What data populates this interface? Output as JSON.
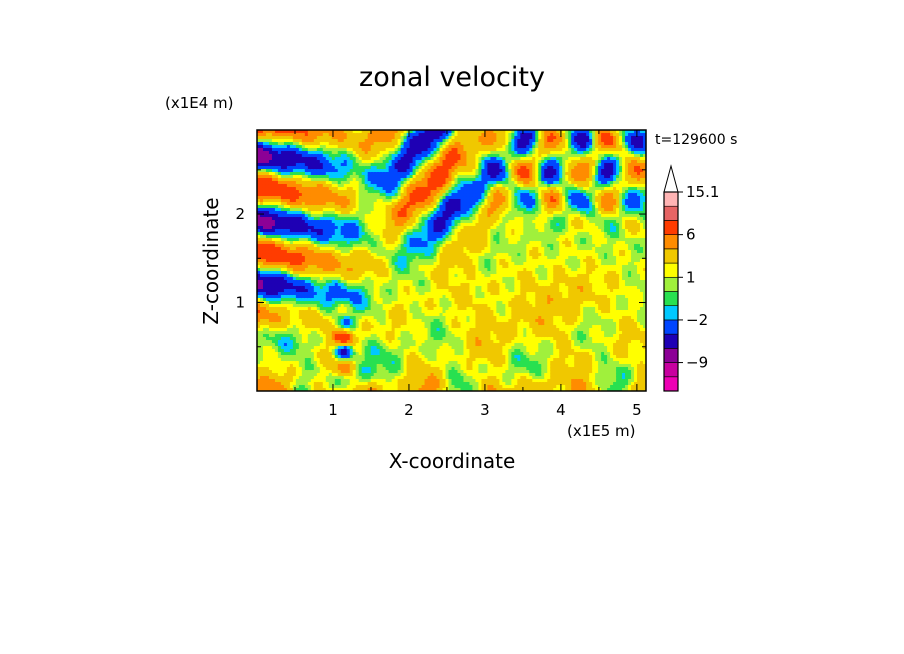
{
  "chart_data": {
    "type": "heatmap",
    "title": "zonal velocity",
    "xlabel": "X-coordinate",
    "ylabel": "Z-coordinate",
    "x_unit": "(x1E5 m)",
    "y_unit": "(x1E4 m)",
    "time_label": "t=129600 s",
    "xlim": [
      0,
      5.12
    ],
    "ylim": [
      0,
      2.95
    ],
    "x_ticks": [
      1,
      2,
      3,
      4,
      5
    ],
    "y_ticks": [
      1,
      2
    ],
    "x_tick_labels": [
      "1",
      "2",
      "3",
      "4",
      "5"
    ],
    "y_tick_labels": [
      "1",
      "2"
    ],
    "colorbar": {
      "boundaries": [
        -15,
        -12,
        -9,
        -6,
        -4,
        -2,
        -1,
        0,
        1,
        2,
        4,
        6,
        9,
        12,
        15.1
      ],
      "colors": [
        "#ee00b4",
        "#c8009f",
        "#8c0096",
        "#1e00b4",
        "#0046ff",
        "#00c8ff",
        "#28e050",
        "#a0f03c",
        "#ffff00",
        "#f0c800",
        "#ff8c00",
        "#ff3c00",
        "#e66464",
        "#ffb4b4"
      ],
      "extend": "max",
      "tick_labels": [
        {
          "value": 15.1,
          "label": "15.1"
        },
        {
          "value": 6,
          "label": "6"
        },
        {
          "value": 1,
          "label": "1"
        },
        {
          "value": -2,
          "label": "−2"
        },
        {
          "value": -9,
          "label": "−9"
        }
      ]
    }
  }
}
